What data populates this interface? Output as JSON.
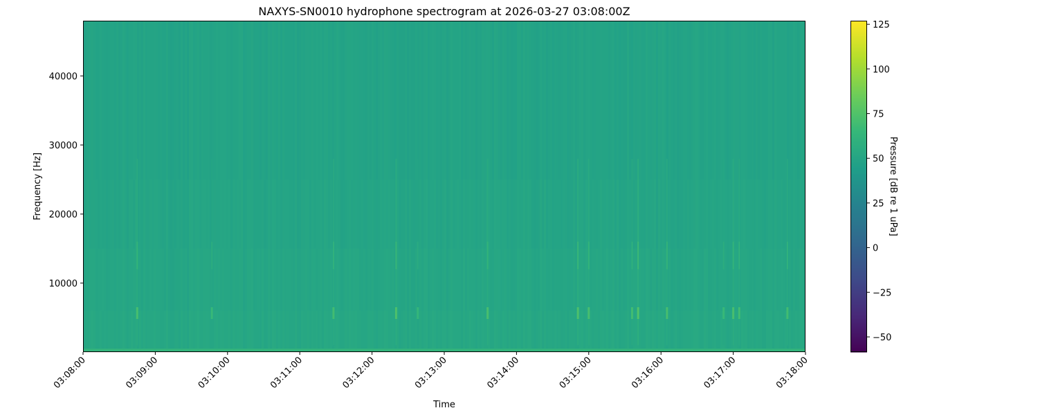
{
  "chart_data": {
    "type": "heatmap",
    "title": "NAXYS-SN0010 hydrophone spectrogram at 2026-03-27 03:08:00Z",
    "xlabel": "Time",
    "ylabel": "Frequency [Hz]",
    "x_ticks": [
      "03:08:00",
      "03:09:00",
      "03:10:00",
      "03:11:00",
      "03:12:00",
      "03:13:00",
      "03:14:00",
      "03:15:00",
      "03:16:00",
      "03:17:00",
      "03:18:00"
    ],
    "xlim": [
      "03:08:00",
      "03:18:00"
    ],
    "y_ticks": [
      10000,
      20000,
      30000,
      40000
    ],
    "ylim": [
      0,
      48000
    ],
    "colormap": "viridis",
    "colorbar": {
      "label": "Pressure [dB re 1 uPa]",
      "ticks": [
        -50,
        -25,
        0,
        25,
        50,
        75,
        100,
        125
      ],
      "range": [
        -58.5,
        127
      ]
    },
    "background_level_db": 50,
    "low_frequency_band": {
      "max_hz": 500,
      "level_db": 62
    },
    "transient_events": [
      {
        "time": "03:08:45",
        "peak_hz": 5500,
        "level_db": 72
      },
      {
        "time": "03:09:47",
        "peak_hz": 5500,
        "level_db": 66
      },
      {
        "time": "03:11:28",
        "peak_hz": 5500,
        "level_db": 70
      },
      {
        "time": "03:12:20",
        "peak_hz": 5500,
        "level_db": 74
      },
      {
        "time": "03:12:38",
        "peak_hz": 5500,
        "level_db": 64
      },
      {
        "time": "03:13:36",
        "peak_hz": 5500,
        "level_db": 72
      },
      {
        "time": "03:14:51",
        "peak_hz": 5500,
        "level_db": 74
      },
      {
        "time": "03:15:00",
        "peak_hz": 5500,
        "level_db": 72
      },
      {
        "time": "03:15:36",
        "peak_hz": 5500,
        "level_db": 70
      },
      {
        "time": "03:15:41",
        "peak_hz": 5500,
        "level_db": 76
      },
      {
        "time": "03:16:05",
        "peak_hz": 5500,
        "level_db": 72
      },
      {
        "time": "03:16:52",
        "peak_hz": 5500,
        "level_db": 66
      },
      {
        "time": "03:17:00",
        "peak_hz": 5500,
        "level_db": 72
      },
      {
        "time": "03:17:05",
        "peak_hz": 5500,
        "level_db": 70
      },
      {
        "time": "03:17:45",
        "peak_hz": 5500,
        "level_db": 70
      }
    ]
  }
}
